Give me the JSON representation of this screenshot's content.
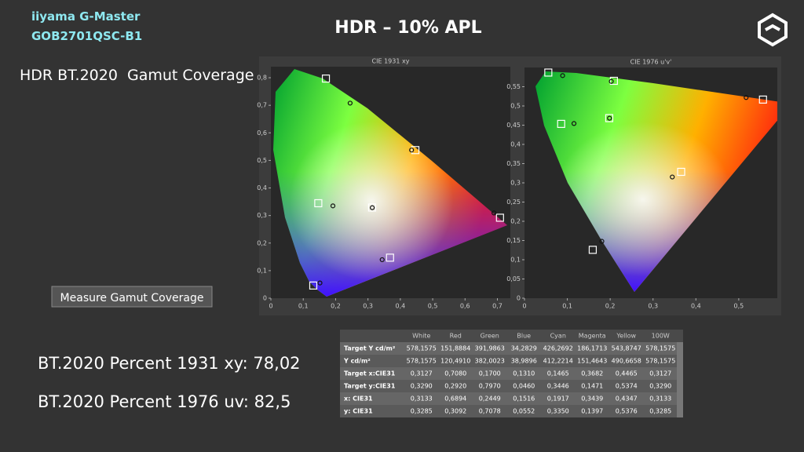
{
  "header": {
    "brand": "iiyama G-Master",
    "model": "GOB2701QSC-B1",
    "title": "HDR – 10% APL"
  },
  "section_title": "HDR BT.2020  Gamut Coverage",
  "button": "Measure Gamut Coverage",
  "results": [
    "BT.2020 Percent 1931 xy: 78,02",
    "BT.2020 Percent 1976 uv: 82,5"
  ],
  "chart_data": [
    {
      "type": "scatter",
      "title": "CIE 1931 xy",
      "xlim": [
        0,
        0.74
      ],
      "ylim": [
        0,
        0.84
      ],
      "xticks": [
        0,
        {
          "value": 0.1,
          "label": "0,1"
        },
        {
          "value": 0.2,
          "label": "0,2"
        },
        {
          "value": 0.3,
          "label": "0,3"
        },
        {
          "value": 0.4,
          "label": "0,4"
        },
        {
          "value": 0.5,
          "label": "0,5"
        },
        {
          "value": 0.6,
          "label": "0,6"
        },
        {
          "value": 0.7,
          "label": "0,7"
        }
      ],
      "yticks": [
        0,
        {
          "value": 0.1,
          "label": "0,1"
        },
        {
          "value": 0.2,
          "label": "0,2"
        },
        {
          "value": 0.3,
          "label": "0,3"
        },
        {
          "value": 0.4,
          "label": "0,4"
        },
        {
          "value": 0.5,
          "label": "0,5"
        },
        {
          "value": 0.6,
          "label": "0,6"
        },
        {
          "value": 0.7,
          "label": "0,7"
        },
        {
          "value": 0.8,
          "label": "0,8"
        }
      ],
      "series": [
        {
          "marker": "square",
          "color": "#ffffff",
          "x": [
            0.3127,
            0.708,
            0.17,
            0.131,
            0.1465,
            0.3682,
            0.4465
          ],
          "y": [
            0.329,
            0.292,
            0.797,
            0.046,
            0.3446,
            0.1471,
            0.5374
          ]
        },
        {
          "marker": "circle",
          "color": "#111111",
          "x": [
            0.3133,
            0.6894,
            0.2449,
            0.1516,
            0.1917,
            0.3439,
            0.4347
          ],
          "y": [
            0.3285,
            0.3092,
            0.7078,
            0.0552,
            0.335,
            0.1397,
            0.5376
          ]
        }
      ]
    },
    {
      "type": "scatter",
      "title": "CIE 1976 u'v'",
      "xlim": [
        0,
        0.59
      ],
      "ylim": [
        0,
        0.6
      ],
      "xticks": [
        0,
        {
          "value": 0.1,
          "label": "0,1"
        },
        {
          "value": 0.2,
          "label": "0,2"
        },
        {
          "value": 0.3,
          "label": "0,3"
        },
        {
          "value": 0.4,
          "label": "0,4"
        },
        {
          "value": 0.5,
          "label": "0,5"
        }
      ],
      "yticks": [
        0,
        {
          "value": 0.05,
          "label": "0,05"
        },
        {
          "value": 0.1,
          "label": "0,1"
        },
        {
          "value": 0.15,
          "label": "0,15"
        },
        {
          "value": 0.2,
          "label": "0,2"
        },
        {
          "value": 0.25,
          "label": "0,25"
        },
        {
          "value": 0.3,
          "label": "0,3"
        },
        {
          "value": 0.35,
          "label": "0,35"
        },
        {
          "value": 0.4,
          "label": "0,4"
        },
        {
          "value": 0.45,
          "label": "0,45"
        },
        {
          "value": 0.5,
          "label": "0,5"
        },
        {
          "value": 0.55,
          "label": "0,55"
        }
      ],
      "series": [
        {
          "marker": "square",
          "color": "#ffffff",
          "x": [
            0.1978,
            0.5566,
            0.0556,
            0.1593,
            0.0856,
            0.3656,
            0.2087
          ],
          "y": [
            0.4683,
            0.5165,
            0.5868,
            0.1258,
            0.4533,
            0.3286,
            0.5653
          ]
        },
        {
          "marker": "circle",
          "color": "#111111",
          "x": [
            0.1984,
            0.5172,
            0.089,
            0.1805,
            0.1155,
            0.3449,
            0.2026
          ],
          "y": [
            0.4681,
            0.5219,
            0.5789,
            0.1479,
            0.4543,
            0.3152,
            0.5638
          ]
        }
      ]
    }
  ],
  "table": {
    "columns": [
      "White",
      "Red",
      "Green",
      "Blue",
      "Cyan",
      "Magenta",
      "Yellow",
      "100W"
    ],
    "rows": [
      [
        "Target Y cd/m²",
        "578,1575",
        "151,8884",
        "391,9863",
        "34,2829",
        "426,2692",
        "186,1713",
        "543,8747",
        "578,1575"
      ],
      [
        "Y cd/m²",
        "578,1575",
        "120,4910",
        "382,0023",
        "38,9896",
        "412,2214",
        "151,4643",
        "490,6658",
        "578,1575"
      ],
      [
        "Target x:CIE31",
        "0,3127",
        "0,7080",
        "0,1700",
        "0,1310",
        "0,1465",
        "0,3682",
        "0,4465",
        "0,3127"
      ],
      [
        "Target y:CIE31",
        "0,3290",
        "0,2920",
        "0,7970",
        "0,0460",
        "0,3446",
        "0,1471",
        "0,5374",
        "0,3290"
      ],
      [
        "x: CIE31",
        "0,3133",
        "0,6894",
        "0,2449",
        "0,1516",
        "0,1917",
        "0,3439",
        "0,4347",
        "0,3133"
      ],
      [
        "y: CIE31",
        "0,3285",
        "0,3092",
        "0,7078",
        "0,0552",
        "0,3350",
        "0,1397",
        "0,5376",
        "0,3285"
      ]
    ]
  }
}
